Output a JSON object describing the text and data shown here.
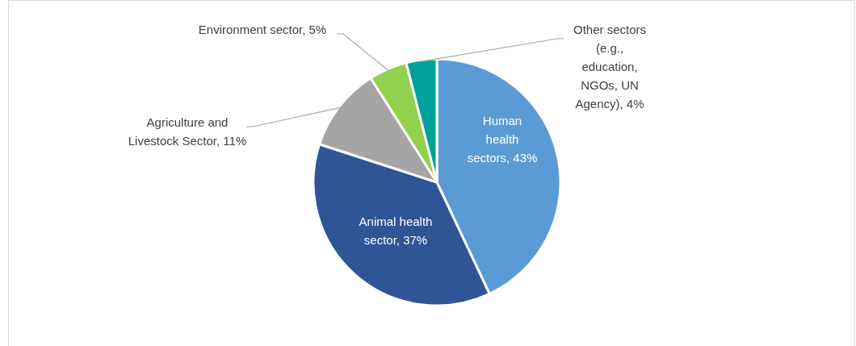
{
  "chart_data": {
    "type": "pie",
    "categories": [
      "Human health sectors",
      "Animal health sector",
      "Agriculture and Livestock Sector",
      "Environment sector",
      "Other sectors (e.g., education, NGOs, UN Agency)"
    ],
    "values": [
      43,
      37,
      11,
      5,
      4
    ],
    "value_labels": [
      "43%",
      "37%",
      "11%",
      "5%",
      "4%"
    ],
    "colors": [
      "#5b9bd5",
      "#2f5597",
      "#a5a5a5",
      "#92d050",
      "#00a19a"
    ]
  }
}
